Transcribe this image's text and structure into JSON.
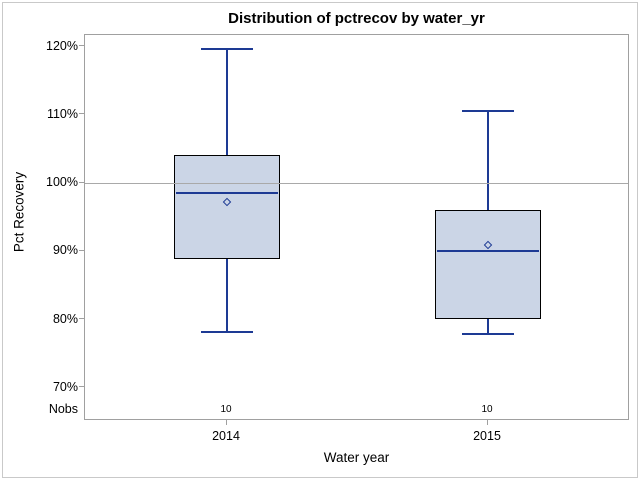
{
  "chart_data": {
    "type": "boxplot",
    "title": "Distribution of pctrecov by water_yr",
    "xlabel": "Water year",
    "ylabel": "Pct Recovery",
    "categories": [
      "2014",
      "2015"
    ],
    "nobs_label": "Nobs",
    "y_axis": {
      "tick_labels": [
        "120%",
        "110%",
        "100%",
        "90%",
        "80%",
        "70%"
      ],
      "tick_values": [
        120,
        110,
        100,
        90,
        80,
        70
      ],
      "unit": "percent",
      "ylim": [
        70,
        120
      ],
      "grid": false
    },
    "refline": 100,
    "series": [
      {
        "category": "2014",
        "nobs": "10",
        "whisker_low": 78.1,
        "q1": 88.9,
        "median": 98.6,
        "mean": 97.2,
        "q3": 104.1,
        "whisker_high": 119.7
      },
      {
        "category": "2015",
        "nobs": "10",
        "whisker_low": 77.9,
        "q1": 80.1,
        "median": 90.0,
        "mean": 90.8,
        "q3": 96.0,
        "whisker_high": 110.6
      }
    ],
    "colors": {
      "box_fill": "#cbd5e6",
      "box_border": "#000000",
      "line": "#1d3a94",
      "refline": "#a9a9a9",
      "frame": "#a0a0a0",
      "outer_border": "#c9c9c9",
      "background": "#ffffff"
    },
    "legend": "none"
  }
}
